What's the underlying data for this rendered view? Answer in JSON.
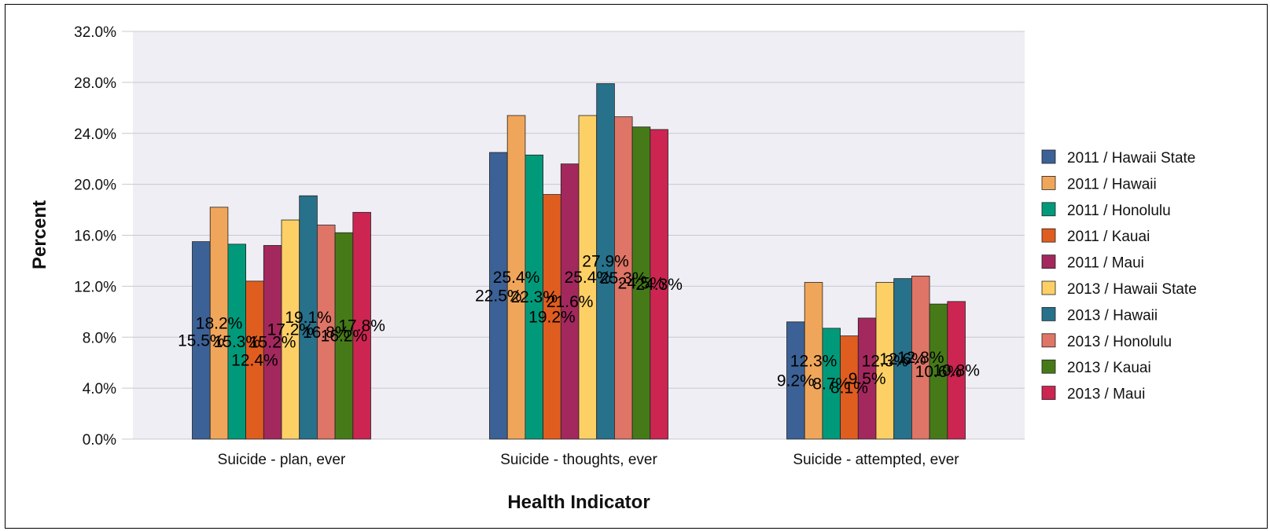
{
  "chart_data": {
    "type": "bar",
    "xlabel": "Health Indicator",
    "ylabel": "Percent",
    "ylim": [
      0,
      32
    ],
    "yticks": [
      "0.0%",
      "4.0%",
      "8.0%",
      "12.0%",
      "16.0%",
      "20.0%",
      "24.0%",
      "28.0%",
      "32.0%"
    ],
    "categories": [
      "Suicide - plan, ever",
      "Suicide - thoughts, ever",
      "Suicide - attempted, ever"
    ],
    "grid": true,
    "legend_position": "right",
    "series": [
      {
        "name": "2011 / Hawaii State",
        "color": "#3c6196",
        "values": [
          15.5,
          22.5,
          9.2
        ],
        "labels": [
          "15.5%",
          "22.5%",
          "9.2%"
        ]
      },
      {
        "name": "2011 / Hawaii",
        "color": "#f0a65a",
        "values": [
          18.2,
          25.4,
          12.3
        ],
        "labels": [
          "18.2%",
          "25.4%",
          "12.3%"
        ]
      },
      {
        "name": "2011 / Honolulu",
        "color": "#009a7a",
        "values": [
          15.3,
          22.3,
          8.7
        ],
        "labels": [
          "15.3%",
          "22.3%",
          "8.7%"
        ]
      },
      {
        "name": "2011 / Kauai",
        "color": "#e05d20",
        "values": [
          12.4,
          19.2,
          8.1
        ],
        "labels": [
          "12.4%",
          "19.2%",
          "8.1%"
        ]
      },
      {
        "name": "2011 / Maui",
        "color": "#a3285d",
        "values": [
          15.2,
          21.6,
          9.5
        ],
        "labels": [
          "15.2%",
          "21.6%",
          "9.5%"
        ]
      },
      {
        "name": "2013 / Hawaii State",
        "color": "#fdd066",
        "values": [
          17.2,
          25.4,
          12.3
        ],
        "labels": [
          "17.2%",
          "25.4%",
          "12.3%"
        ]
      },
      {
        "name": "2013 / Hawaii",
        "color": "#27718b",
        "values": [
          19.1,
          27.9,
          12.6
        ],
        "labels": [
          "19.1%",
          "27.9%",
          "12.6%"
        ]
      },
      {
        "name": "2013 / Honolulu",
        "color": "#df7566",
        "values": [
          16.8,
          25.3,
          12.8
        ],
        "labels": [
          "16.8%",
          "25.3%",
          "12.8%"
        ]
      },
      {
        "name": "2013 / Kauai",
        "color": "#467a19",
        "values": [
          16.2,
          24.5,
          10.6
        ],
        "labels": [
          "16.2%",
          "24.5%",
          "10.6%"
        ]
      },
      {
        "name": "2013 / Maui",
        "color": "#cc2551",
        "values": [
          17.8,
          24.3,
          10.8
        ],
        "labels": [
          "17.8%",
          "24.3%",
          "10.8%"
        ]
      }
    ]
  }
}
